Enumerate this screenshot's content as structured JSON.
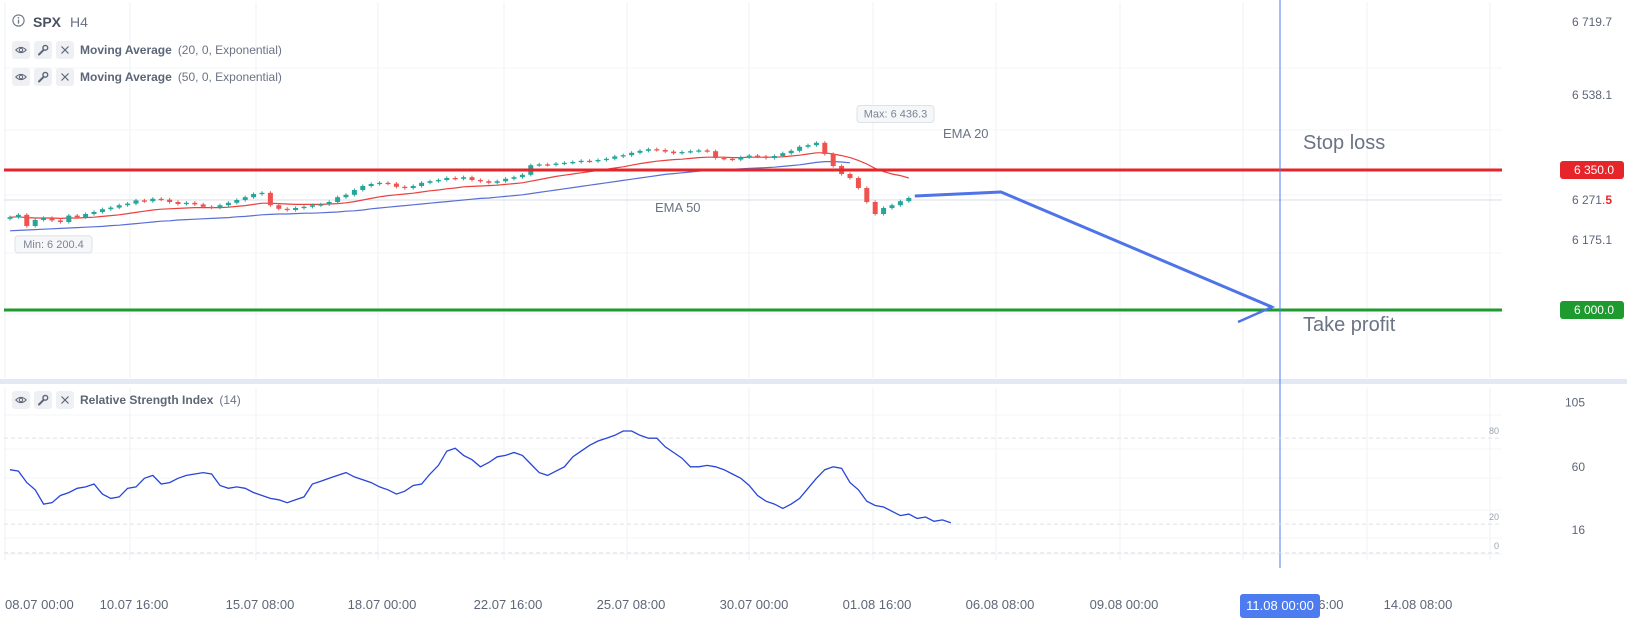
{
  "header": {
    "symbol": "SPX",
    "timeframe": "H4",
    "indicators": [
      {
        "name": "Moving Average",
        "params": "(20, 0, Exponential)"
      },
      {
        "name": "Moving Average",
        "params": "(50, 0, Exponential)"
      }
    ]
  },
  "rsi_pane": {
    "name": "Relative Strength Index",
    "params": "(14)"
  },
  "colors": {
    "ema20": "#e8413e",
    "ema50": "#5a6fd6",
    "bull": "#26a69a",
    "bear": "#ef5350",
    "rsi": "#2845d8",
    "stop_loss": "#e5252a",
    "take_profit": "#1e9a2e",
    "arrow": "#4f73e8",
    "crosshair": "#4d7cf0"
  },
  "chart_data": [
    {
      "type": "candlestick",
      "title": "SPX H4",
      "x_ticks": [
        "08.07 00:00",
        "10.07 16:00",
        "15.07 08:00",
        "18.07 00:00",
        "22.07 16:00",
        "25.07 08:00",
        "30.07 00:00",
        "01.08 16:00",
        "06.08 08:00",
        "09.08 00:00",
        "11.08 00:00",
        "16:00",
        "14.08 08:00"
      ],
      "crosshair_x_label": "11.08 00:00",
      "y_ticks": [
        "6 719.7",
        "6 538.1",
        "6 271.5",
        "6 175.1"
      ],
      "current_price_label": {
        "main": "6 271.",
        "last": "5"
      },
      "ylim": [
        5830,
        6770
      ],
      "y_tick_values": [
        6719.7,
        6538.1,
        6271.5,
        6175.1
      ],
      "close": [
        6232,
        6238,
        6210,
        6225,
        6230,
        6224,
        6220,
        6236,
        6232,
        6240,
        6245,
        6252,
        6256,
        6262,
        6266,
        6274,
        6272,
        6278,
        6276,
        6270,
        6265,
        6268,
        6264,
        6258,
        6256,
        6262,
        6268,
        6275,
        6282,
        6290,
        6293,
        6262,
        6253,
        6250,
        6255,
        6258,
        6262,
        6264,
        6270,
        6282,
        6288,
        6300,
        6310,
        6315,
        6318,
        6316,
        6308,
        6305,
        6310,
        6318,
        6322,
        6325,
        6330,
        6328,
        6332,
        6325,
        6322,
        6318,
        6322,
        6328,
        6332,
        6338,
        6362,
        6364,
        6363,
        6366,
        6368,
        6370,
        6373,
        6372,
        6375,
        6378,
        6384,
        6387,
        6393,
        6398,
        6402,
        6400,
        6396,
        6392,
        6395,
        6397,
        6399,
        6397,
        6380,
        6378,
        6376,
        6382,
        6386,
        6384,
        6380,
        6385,
        6392,
        6398,
        6408,
        6412,
        6418,
        6390,
        6360,
        6340,
        6330,
        6305,
        6270,
        6240,
        6255,
        6262,
        6272,
        6280
      ],
      "series": [
        {
          "name": "EMA 20",
          "values": [
            6232,
            6233,
            6231,
            6230,
            6230,
            6230,
            6229,
            6230,
            6230,
            6231,
            6232,
            6234,
            6236,
            6238,
            6241,
            6244,
            6247,
            6250,
            6252,
            6253,
            6254,
            6255,
            6256,
            6256,
            6256,
            6256,
            6257,
            6259,
            6261,
            6264,
            6267,
            6267,
            6266,
            6265,
            6264,
            6264,
            6264,
            6264,
            6265,
            6266,
            6268,
            6271,
            6275,
            6279,
            6283,
            6286,
            6288,
            6290,
            6292,
            6295,
            6298,
            6300,
            6303,
            6305,
            6308,
            6309,
            6310,
            6311,
            6312,
            6314,
            6316,
            6318,
            6322,
            6326,
            6330,
            6334,
            6337,
            6340,
            6343,
            6346,
            6349,
            6352,
            6355,
            6358,
            6362,
            6366,
            6369,
            6372,
            6374,
            6376,
            6377,
            6379,
            6381,
            6382,
            6382,
            6382,
            6381,
            6381,
            6382,
            6382,
            6382,
            6382,
            6383,
            6385,
            6387,
            6390,
            6393,
            6393,
            6390,
            6386,
            6381,
            6374,
            6365,
            6354,
            6346,
            6340,
            6336,
            6330
          ]
        },
        {
          "name": "EMA 50",
          "values": [
            6198,
            6199,
            6200,
            6201,
            6202,
            6203,
            6204,
            6205,
            6206,
            6207,
            6208,
            6209,
            6211,
            6212,
            6214,
            6216,
            6218,
            6220,
            6222,
            6223,
            6225,
            6226,
            6227,
            6228,
            6229,
            6230,
            6231,
            6233,
            6234,
            6236,
            6238,
            6239,
            6240,
            6240,
            6241,
            6242,
            6242,
            6243,
            6244,
            6245,
            6247,
            6248,
            6250,
            6253,
            6255,
            6257,
            6259,
            6261,
            6263,
            6265,
            6267,
            6269,
            6271,
            6273,
            6275,
            6277,
            6279,
            6280,
            6282,
            6284,
            6286,
            6288,
            6291,
            6294,
            6297,
            6300,
            6303,
            6306,
            6309,
            6312,
            6315,
            6318,
            6321,
            6324,
            6327,
            6330,
            6333,
            6336,
            6339,
            6341,
            6343,
            6345,
            6347,
            6349,
            6350,
            6351,
            6352,
            6353,
            6354,
            6355,
            6356,
            6357,
            6359,
            6361,
            6363,
            6366,
            6369,
            6371,
            6371,
            6370,
            6368
          ]
        },
        {
          "name": "RSI",
          "values": [
            58,
            57,
            49,
            44,
            34,
            35,
            40,
            42,
            45,
            46,
            48,
            41,
            38,
            39,
            45,
            46,
            52,
            54,
            48,
            49,
            52,
            54,
            55,
            56,
            55,
            47,
            45,
            46,
            45,
            42,
            40,
            38,
            37,
            35,
            37,
            39,
            48,
            50,
            52,
            54,
            56,
            53,
            51,
            49,
            46,
            44,
            41,
            43,
            47,
            48,
            55,
            61,
            71,
            73,
            68,
            65,
            60,
            63,
            67,
            68,
            70,
            68,
            62,
            56,
            54,
            57,
            60,
            67,
            71,
            75,
            78,
            80,
            82,
            85,
            85,
            82,
            80,
            80,
            74,
            70,
            66,
            60,
            60,
            61,
            60,
            58,
            55,
            52,
            47,
            40,
            36,
            34,
            31,
            34,
            38,
            45,
            52,
            58,
            60,
            59,
            49,
            44,
            36,
            33,
            32,
            29,
            26,
            27,
            24,
            25,
            22,
            23,
            21
          ]
        }
      ],
      "min_label": "Min: 6 200.4",
      "max_label": "Max: 6 436.3",
      "annotations": [
        "EMA 20",
        "EMA 50",
        "Stop loss",
        "Take profit"
      ],
      "levels": [
        {
          "name": "Stop loss",
          "value": 6350.0,
          "label": "6 350.0"
        },
        {
          "name": "Take profit",
          "value": 6000.0,
          "label": "6 000.0"
        }
      ],
      "projection_arrow": {
        "from_price": 6300,
        "to_price": 6000,
        "to_x_label": "11.08 00:00"
      },
      "rsi_y_ticks": [
        "105",
        "60",
        "16"
      ],
      "rsi_levels": [
        "80",
        "20",
        "0"
      ],
      "rsi_ylim": [
        -5,
        115
      ]
    }
  ]
}
